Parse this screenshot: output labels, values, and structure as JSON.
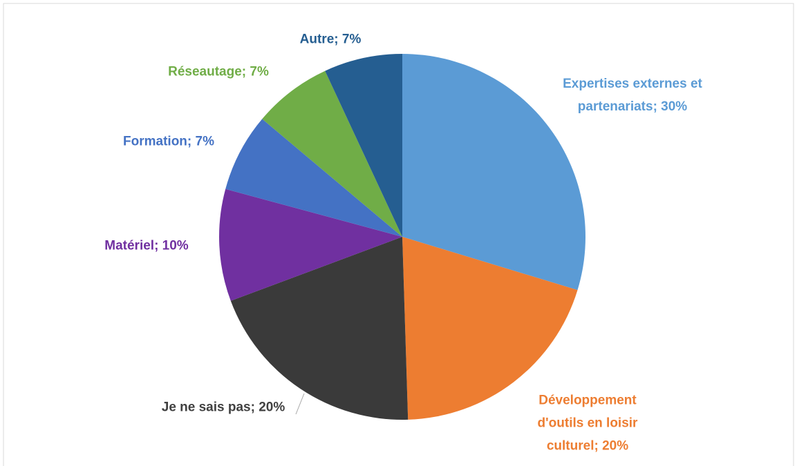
{
  "chart_data": {
    "type": "pie",
    "labels": [
      "Expertises externes et partenariats; 30%",
      "Développement d'outils en loisir culturel; 20%",
      "Je ne sais pas; 20%",
      "Matériel; 10%",
      "Formation; 7%",
      "Réseautage; 7%",
      "Autre; 7%"
    ],
    "values": [
      30,
      20,
      20,
      10,
      7,
      7,
      7
    ],
    "colors": [
      "#5b9bd5",
      "#ed7d31",
      "#3a3a3a",
      "#7030a0",
      "#4472c4",
      "#70ad47",
      "#255e91"
    ]
  }
}
